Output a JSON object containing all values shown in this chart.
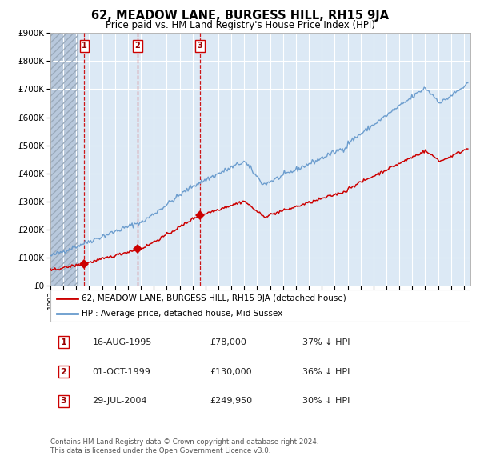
{
  "title": "62, MEADOW LANE, BURGESS HILL, RH15 9JA",
  "subtitle": "Price paid vs. HM Land Registry's House Price Index (HPI)",
  "legend_line1": "62, MEADOW LANE, BURGESS HILL, RH15 9JA (detached house)",
  "legend_line2": "HPI: Average price, detached house, Mid Sussex",
  "sale_year_nums": [
    1995.621,
    1999.748,
    2004.573
  ],
  "sale_prices": [
    78000,
    130000,
    249950
  ],
  "sale_labels": [
    "1",
    "2",
    "3"
  ],
  "table_rows": [
    [
      "1",
      "16-AUG-1995",
      "£78,000",
      "37% ↓ HPI"
    ],
    [
      "2",
      "01-OCT-1999",
      "£130,000",
      "36% ↓ HPI"
    ],
    [
      "3",
      "29-JUL-2004",
      "£249,950",
      "30% ↓ HPI"
    ]
  ],
  "footnote1": "Contains HM Land Registry data © Crown copyright and database right 2024.",
  "footnote2": "This data is licensed under the Open Government Licence v3.0.",
  "red_color": "#cc0000",
  "blue_color": "#6699cc",
  "bg_color": "#dce9f5",
  "hatch_color": "#b8c8dc",
  "grid_color": "#ffffff",
  "ylim": [
    0,
    900000
  ],
  "yticks": [
    0,
    100000,
    200000,
    300000,
    400000,
    500000,
    600000,
    700000,
    800000,
    900000
  ],
  "xlim": [
    1993.0,
    2025.5
  ],
  "xtick_start": 1993,
  "xtick_end": 2026
}
